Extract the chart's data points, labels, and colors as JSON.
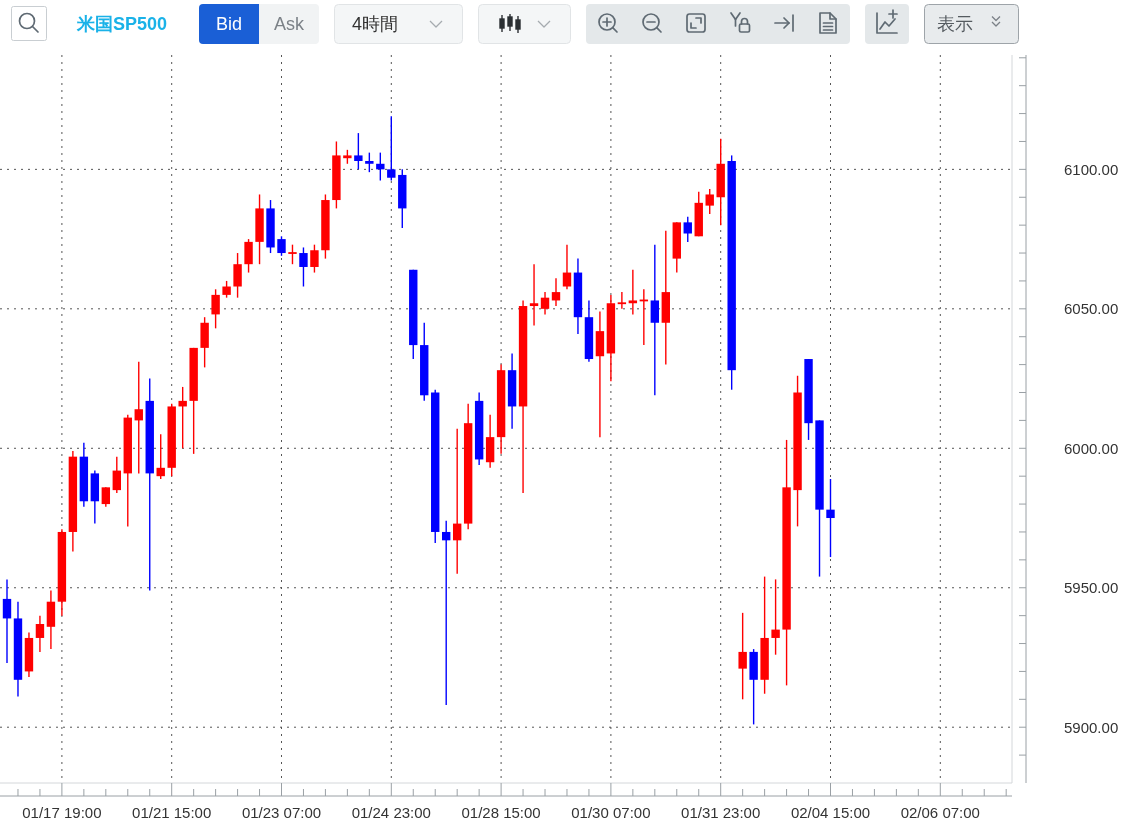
{
  "chart_data": {
    "type": "candlestick",
    "title": "米国SP500",
    "annotations": [
      "Bid",
      "Ask",
      "4時間",
      "表示"
    ],
    "categories": [
      null,
      null,
      null,
      null,
      null,
      "01/17 19:00",
      null,
      null,
      null,
      null,
      null,
      null,
      null,
      null,
      null,
      "01/21 15:00",
      null,
      null,
      null,
      null,
      null,
      null,
      null,
      null,
      null,
      "01/23 07:00",
      null,
      null,
      null,
      null,
      null,
      null,
      null,
      null,
      null,
      "01/24 23:00",
      null,
      null,
      null,
      null,
      null,
      null,
      null,
      null,
      null,
      "01/28 15:00",
      null,
      null,
      null,
      null,
      null,
      null,
      null,
      null,
      null,
      "01/30 07:00",
      null,
      null,
      null,
      null,
      null,
      null,
      null,
      null,
      null,
      "01/31 23:00",
      null,
      null,
      null,
      null,
      null,
      null,
      null,
      null,
      null,
      "02/04 15:00",
      null,
      null,
      null,
      null,
      null,
      null,
      null,
      null,
      null,
      "02/06 07:00",
      null,
      null,
      null,
      null,
      null,
      null
    ],
    "ohlc": [
      [
        5946,
        5953,
        5923,
        5939
      ],
      [
        5939,
        5945,
        5911,
        5917
      ],
      [
        5920,
        5934,
        5918,
        5932
      ],
      [
        5932,
        5940,
        5927,
        5937
      ],
      [
        5936,
        5949,
        5928,
        5945
      ],
      [
        5945,
        5971,
        5940,
        5970
      ],
      [
        5970,
        5999,
        5963,
        5997
      ],
      [
        5997,
        6002,
        5979,
        5981
      ],
      [
        5991,
        5992,
        5973,
        5981
      ],
      [
        5980,
        5986,
        5979,
        5986
      ],
      [
        5985,
        5997,
        5984,
        5992
      ],
      [
        5991,
        6012,
        5972,
        6011
      ],
      [
        6010,
        6031,
        5991,
        6014
      ],
      [
        6017,
        6025,
        5949,
        5991
      ],
      [
        5990,
        6005,
        5989,
        5993
      ],
      [
        5993,
        6016,
        5990,
        6015
      ],
      [
        6015,
        6022,
        6000,
        6017
      ],
      [
        6017,
        6036,
        5998,
        6036
      ],
      [
        6036,
        6047,
        6029,
        6045
      ],
      [
        6048,
        6057,
        6043,
        6055
      ],
      [
        6055,
        6060,
        6054,
        6058
      ],
      [
        6058,
        6070,
        6054,
        6066
      ],
      [
        6066,
        6075,
        6063,
        6074
      ],
      [
        6074,
        6091,
        6066,
        6086
      ],
      [
        6086,
        6089,
        6070,
        6072
      ],
      [
        6075,
        6076,
        6069,
        6070
      ],
      [
        6070,
        6073,
        6066,
        6070
      ],
      [
        6070,
        6072,
        6058,
        6065
      ],
      [
        6065,
        6073,
        6063,
        6071
      ],
      [
        6071,
        6091,
        6068,
        6089
      ],
      [
        6089,
        6110,
        6086,
        6105
      ],
      [
        6104,
        6107,
        6102,
        6105
      ],
      [
        6105,
        6113,
        6100,
        6103
      ],
      [
        6103,
        6106,
        6099,
        6102
      ],
      [
        6102,
        6106,
        6096,
        6100
      ],
      [
        6100,
        6119,
        6096,
        6097
      ],
      [
        6098,
        6100,
        6079,
        6086
      ],
      [
        6064,
        6064,
        6032,
        6037
      ],
      [
        6037,
        6045,
        6017,
        6019
      ],
      [
        6020,
        6021,
        5966,
        5970
      ],
      [
        5970,
        5974,
        5908,
        5967
      ],
      [
        5967,
        6007,
        5955,
        5973
      ],
      [
        5973,
        6016,
        5971,
        6009
      ],
      [
        6017,
        6020,
        5994,
        5996
      ],
      [
        5995,
        6012,
        5993,
        6004
      ],
      [
        6004,
        6030,
        5998,
        6028
      ],
      [
        6028,
        6034,
        6007,
        6015
      ],
      [
        6015,
        6053,
        5984,
        6051
      ],
      [
        6051,
        6066,
        6044,
        6052
      ],
      [
        6050,
        6056,
        6048,
        6054
      ],
      [
        6053,
        6061,
        6051,
        6056
      ],
      [
        6058,
        6073,
        6057,
        6063
      ],
      [
        6063,
        6068,
        6041,
        6047
      ],
      [
        6047,
        6053,
        6031,
        6032
      ],
      [
        6033,
        6049,
        6004,
        6042
      ],
      [
        6034,
        6055,
        6024,
        6052
      ],
      [
        6052,
        6056,
        6050,
        6052
      ],
      [
        6052,
        6064,
        6048,
        6053
      ],
      [
        6053,
        6057,
        6037,
        6053
      ],
      [
        6053,
        6073,
        6019,
        6045
      ],
      [
        6045,
        6078,
        6030,
        6056
      ],
      [
        6068,
        6081,
        6063,
        6081
      ],
      [
        6081,
        6083,
        6074,
        6077
      ],
      [
        6076,
        6092,
        6076,
        6088
      ],
      [
        6087,
        6093,
        6084,
        6091
      ],
      [
        6090,
        6111,
        6080,
        6102
      ],
      [
        6103,
        6105,
        6021,
        6028
      ],
      [
        5921,
        5941,
        5910,
        5927
      ],
      [
        5927,
        5928,
        5901,
        5917
      ],
      [
        5917,
        5954,
        5912,
        5932
      ],
      [
        5932,
        5953,
        5926,
        5935
      ],
      [
        5935,
        6003,
        5915,
        5986
      ],
      [
        5985,
        6026,
        5972,
        6020
      ],
      [
        6032,
        6032,
        6003,
        6009
      ],
      [
        6010,
        6010,
        5954,
        5978
      ],
      [
        5978,
        5989,
        5961,
        5975
      ],
      null,
      null,
      null,
      null,
      null,
      null,
      null,
      null,
      null,
      null,
      null,
      null,
      null,
      null,
      null,
      null
    ],
    "colors": [
      "#0000ff",
      "#0000ff",
      "#ff0000",
      "#ff0000",
      "#ff0000",
      "#ff0000",
      "#ff0000",
      "#0000ff",
      "#0000ff",
      "#ff0000",
      "#ff0000",
      "#ff0000",
      "#ff0000",
      "#0000ff",
      "#ff0000",
      "#ff0000",
      "#ff0000",
      "#ff0000",
      "#ff0000",
      "#ff0000",
      "#ff0000",
      "#ff0000",
      "#ff0000",
      "#ff0000",
      "#0000ff",
      "#0000ff",
      "#ff0000",
      "#0000ff",
      "#ff0000",
      "#ff0000",
      "#ff0000",
      "#ff0000",
      "#0000ff",
      "#0000ff",
      "#0000ff",
      "#0000ff",
      "#0000ff",
      "#0000ff",
      "#0000ff",
      "#0000ff",
      "#0000ff",
      "#ff0000",
      "#ff0000",
      "#0000ff",
      "#ff0000",
      "#ff0000",
      "#0000ff",
      "#ff0000",
      "#ff0000",
      "#ff0000",
      "#ff0000",
      "#ff0000",
      "#0000ff",
      "#0000ff",
      "#ff0000",
      "#ff0000",
      "#ff0000",
      "#ff0000",
      "#ff0000",
      "#0000ff",
      "#ff0000",
      "#ff0000",
      "#0000ff",
      "#ff0000",
      "#ff0000",
      "#ff0000",
      "#0000ff",
      "#ff0000",
      "#0000ff",
      "#ff0000",
      "#ff0000",
      "#ff0000",
      "#ff0000",
      "#0000ff",
      "#0000ff",
      "#0000ff",
      null,
      null,
      null,
      null,
      null,
      null,
      null,
      null,
      null,
      null,
      null,
      null,
      null,
      null,
      null,
      null
    ],
    "ylim": [
      5880,
      6141
    ],
    "yticks": [
      {
        "value": 5890,
        "label": null
      },
      {
        "value": 5900,
        "label": "5900.00"
      },
      {
        "value": 5910,
        "label": null
      },
      {
        "value": 5920,
        "label": null
      },
      {
        "value": 5930,
        "label": null
      },
      {
        "value": 5940,
        "label": null
      },
      {
        "value": 5950,
        "label": "5950.00"
      },
      {
        "value": 5960,
        "label": null
      },
      {
        "value": 5970,
        "label": null
      },
      {
        "value": 5980,
        "label": null
      },
      {
        "value": 5990,
        "label": null
      },
      {
        "value": 6000,
        "label": "6000.00"
      },
      {
        "value": 6010,
        "label": null
      },
      {
        "value": 6020,
        "label": null
      },
      {
        "value": 6030,
        "label": null
      },
      {
        "value": 6040,
        "label": null
      },
      {
        "value": 6050,
        "label": "6050.00"
      },
      {
        "value": 6060,
        "label": null
      },
      {
        "value": 6070,
        "label": null
      },
      {
        "value": 6080,
        "label": null
      },
      {
        "value": 6090,
        "label": null
      },
      {
        "value": 6100,
        "label": "6100.00"
      },
      {
        "value": 6110,
        "label": null
      },
      {
        "value": 6120,
        "label": null
      },
      {
        "value": 6130,
        "label": null
      },
      {
        "value": 6140,
        "label": null
      }
    ],
    "grid": true
  }
}
